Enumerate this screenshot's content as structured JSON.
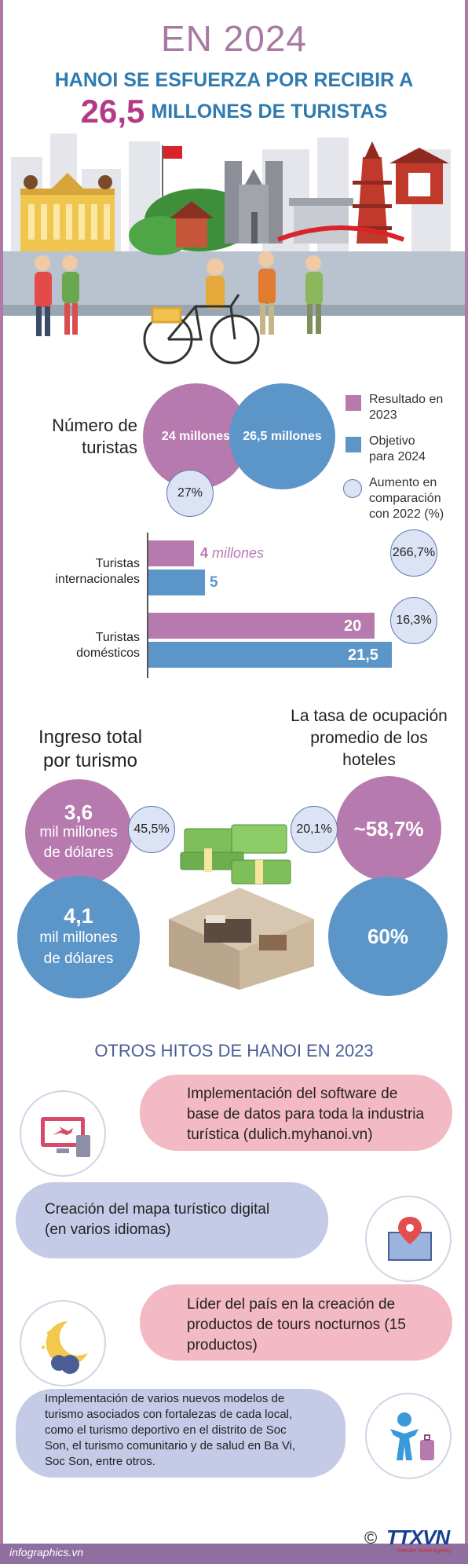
{
  "header": {
    "year": "EN 2024",
    "line1": "HANOI SE ESFUERZA POR RECIBIR A",
    "big_number": "26,5",
    "line2_rest": "MILLONES DE TURISTAS"
  },
  "tourists": {
    "title_line1": "Número de",
    "title_line2": "turistas",
    "result_label": "24 millones",
    "target_label": "26,5 millones",
    "growth": "27%"
  },
  "legend": {
    "result_line1": "Resultado en",
    "result_line2": "2023",
    "target_line1": "Objetivo",
    "target_line2": "para 2024",
    "increase_line1": "Aumento en",
    "increase_line2": "comparación",
    "increase_line3": "con 2022 (%)"
  },
  "chart_data": {
    "type": "bar",
    "categories": [
      "Turistas internacionales",
      "Turistas domésticos"
    ],
    "series": [
      {
        "name": "Resultado en 2023",
        "values": [
          4,
          20
        ]
      },
      {
        "name": "Objetivo para 2024",
        "values": [
          5,
          21.5
        ]
      }
    ],
    "increase_pct": [
      "266,7%",
      "16,3%"
    ],
    "value_labels": {
      "intl_result_num": "4",
      "intl_result_unit": "millones",
      "intl_target": "5",
      "dom_result": "20",
      "dom_target": "21,5"
    },
    "category_lines": {
      "intl_1": "Turistas",
      "intl_2": "internacionales",
      "dom_1": "Turistas",
      "dom_2": "domésticos"
    },
    "xlim": [
      0,
      21.5
    ]
  },
  "revenue": {
    "title_line1": "Ingreso total",
    "title_line2": "por turismo",
    "result_value": "3,6",
    "result_unit1": "mil millones",
    "result_unit2": "de dólares",
    "target_value": "4,1",
    "target_unit1": "mil millones",
    "target_unit2": "de dólares",
    "growth": "45,5%"
  },
  "occupancy": {
    "title_line1": "La tasa de ocupación",
    "title_line2": "promedio de los",
    "title_line3": "hoteles",
    "result": "~58,7%",
    "target": "60%",
    "growth": "20,1%"
  },
  "milestones": {
    "title": "OTROS HITOS DE HANOI EN 2023",
    "items": [
      {
        "l1": "Implementación del software de",
        "l2": "base de datos para toda la industria",
        "l3": "turística (dulich.myhanoi.vn)"
      },
      {
        "l1": "Creación del mapa turístico digital",
        "l2": "(en varios idiomas)"
      },
      {
        "l1": "Líder del país en la creación de",
        "l2": "productos de tours nocturnos (15",
        "l3": "productos)"
      },
      {
        "l1": "Implementación de varios nuevos modelos de",
        "l2": "turismo asociados con fortalezas de cada local,",
        "l3": "como el turismo deportivo en el distrito de Soc",
        "l4": "Son, el turismo comunitario y de salud en Ba Vi,",
        "l5": "Soc Son, entre otros."
      }
    ]
  },
  "footer": {
    "source": "infographics.vn",
    "copyright": "©",
    "brand": "TTXVN",
    "brand_sub": "Vietnam News Agency"
  },
  "colors": {
    "pink": "#b77aae",
    "blue": "#5c95c8",
    "pale_blue": "#dbe3f4",
    "title_blue": "#2f7bb0",
    "magenta": "#b53a86",
    "pill_pink": "#f3b9c5",
    "pill_lavender": "#c5cbe6",
    "border": "#b07aa6"
  },
  "icons": [
    "opera-house-icon",
    "cathedral-icon",
    "pagoda-icon",
    "bicycle-icon",
    "tourist-icon",
    "money-icon",
    "hotel-room-icon",
    "software-icon",
    "map-pin-icon",
    "moon-stars-icon",
    "traveler-icon"
  ]
}
